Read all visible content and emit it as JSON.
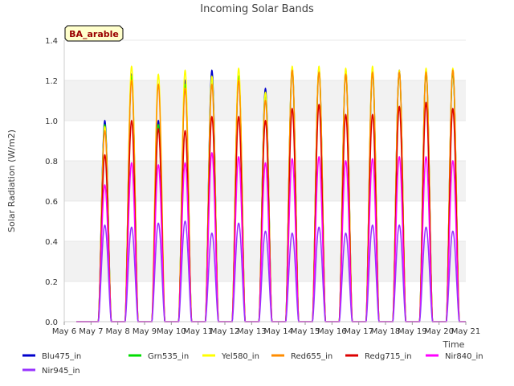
{
  "chart_data": {
    "type": "line",
    "title": "Incoming Solar Bands",
    "xlabel": "Time",
    "ylabel": "Solar Radiation (W/m2)",
    "ylim": [
      0,
      1.4
    ],
    "yticks": [
      "0.0",
      "0.2",
      "0.4",
      "0.6",
      "0.8",
      "1.0",
      "1.2",
      "1.4"
    ],
    "xlim": [
      6,
      21
    ],
    "xticks": [
      "May 6",
      "May 7",
      "May 8",
      "May 9",
      "May 10",
      "May 11",
      "May 12",
      "May 13",
      "May 14",
      "May 15",
      "May 16",
      "May 17",
      "May 18",
      "May 19",
      "May 20",
      "May 21"
    ],
    "site_label": "BA_arable",
    "grid": "horizontal bands",
    "legend_position": "bottom",
    "day_start": 6.45,
    "day_end": 21.0,
    "days": [
      6,
      7,
      8,
      9,
      10,
      11,
      12,
      13,
      14,
      15,
      16,
      17,
      18,
      19,
      20
    ],
    "series": [
      {
        "name": "Blu475_in",
        "color": "#0000cc",
        "daily_peak": [
          0.0,
          1.0,
          1.23,
          1.0,
          1.2,
          1.25,
          1.22,
          1.16,
          1.26,
          1.26,
          1.25,
          1.25,
          1.25,
          1.25,
          1.25
        ]
      },
      {
        "name": "Grn535_in",
        "color": "#00dd00",
        "daily_peak": [
          0.0,
          0.98,
          1.22,
          0.98,
          1.18,
          1.22,
          1.22,
          1.14,
          1.25,
          1.25,
          1.24,
          1.24,
          1.24,
          1.24,
          1.24
        ]
      },
      {
        "name": "Yel580_in",
        "color": "#ffff00",
        "daily_peak": [
          0.0,
          0.97,
          1.27,
          1.23,
          1.25,
          1.22,
          1.26,
          1.14,
          1.27,
          1.27,
          1.26,
          1.27,
          1.25,
          1.26,
          1.26
        ]
      },
      {
        "name": "Red655_in",
        "color": "#ff8c00",
        "daily_peak": [
          0.0,
          0.95,
          1.2,
          1.18,
          1.16,
          1.18,
          1.2,
          1.1,
          1.25,
          1.24,
          1.23,
          1.24,
          1.24,
          1.24,
          1.25
        ]
      },
      {
        "name": "Redg715_in",
        "color": "#dd0000",
        "daily_peak": [
          0.0,
          0.83,
          1.0,
          0.96,
          0.95,
          1.02,
          1.02,
          1.0,
          1.06,
          1.08,
          1.03,
          1.03,
          1.07,
          1.09,
          1.06
        ]
      },
      {
        "name": "Nir840_in",
        "color": "#ff00ff",
        "daily_peak": [
          0.0,
          0.68,
          0.79,
          0.78,
          0.79,
          0.84,
          0.82,
          0.79,
          0.81,
          0.82,
          0.8,
          0.81,
          0.82,
          0.82,
          0.8
        ]
      },
      {
        "name": "Nir945_in",
        "color": "#9933ff",
        "daily_peak": [
          0.0,
          0.48,
          0.47,
          0.49,
          0.5,
          0.44,
          0.49,
          0.45,
          0.44,
          0.47,
          0.44,
          0.48,
          0.48,
          0.47,
          0.45
        ]
      }
    ]
  }
}
